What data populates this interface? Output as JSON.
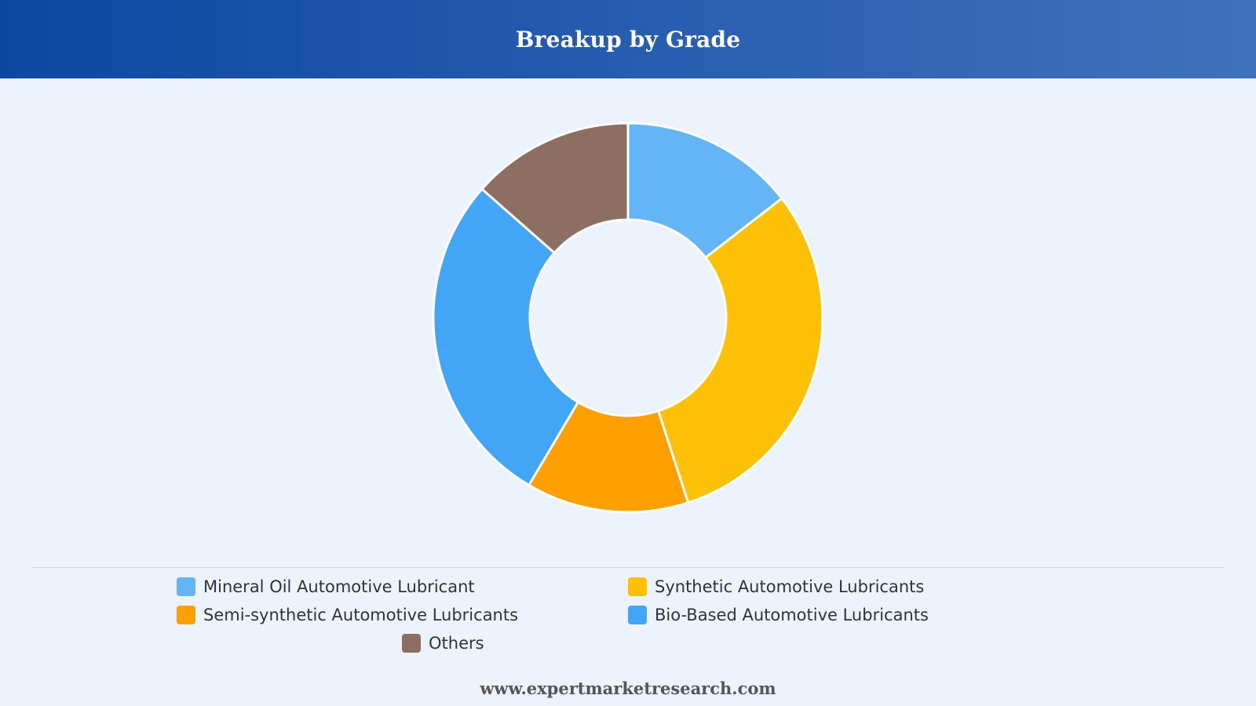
{
  "header": {
    "title": "Breakup by Grade"
  },
  "chart_data": {
    "type": "pie",
    "title": "Breakup by Grade",
    "legend_position": "bottom",
    "categories": [
      "Mineral Oil Automotive Lubricant",
      "Synthetic Automotive Lubricants",
      "Semi-synthetic Automotive Lubricants",
      "Bio-Based Automotive Lubricants",
      "Others"
    ],
    "values": [
      14.5,
      30.5,
      13.5,
      28.0,
      13.5
    ],
    "colors": [
      "#64b5f6",
      "#ffc107",
      "#ffa000",
      "#42a5f5",
      "#8d6e63"
    ]
  },
  "footer": {
    "source": "www.expertmarketresearch.com"
  }
}
